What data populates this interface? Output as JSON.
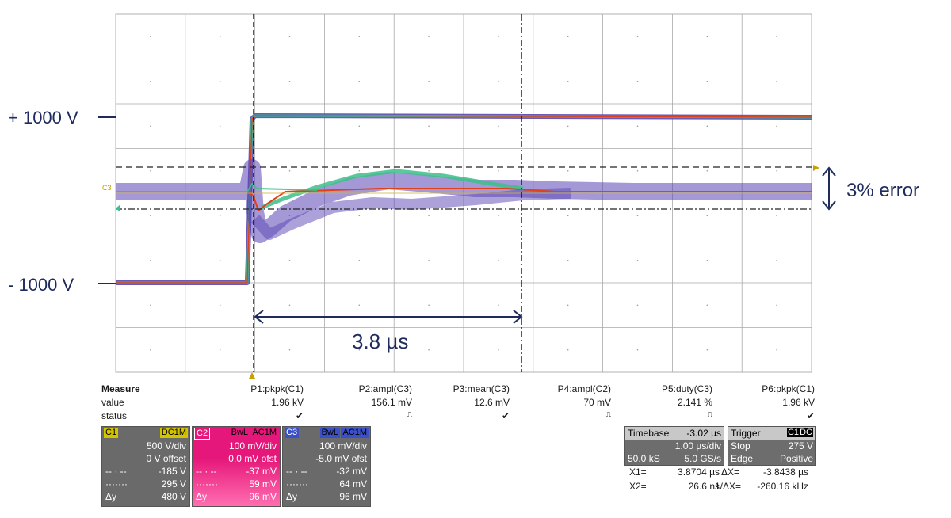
{
  "annotations": {
    "plus_level": "+ 1000 V",
    "minus_level": "- 1000 V",
    "error_label": "3% error",
    "time_label": "3.8 µs",
    "marker_c3": "C3"
  },
  "measure": {
    "header": "Measure",
    "row_labels": [
      "value",
      "status"
    ],
    "params": [
      {
        "name": "P1:pkpk(C1)",
        "value": "1.96 kV",
        "status": "✔"
      },
      {
        "name": "P2:ampl(C3)",
        "value": "156.1 mV",
        "status": "⎍"
      },
      {
        "name": "P3:mean(C3)",
        "value": "12.6 mV",
        "status": "✔"
      },
      {
        "name": "P4:ampl(C2)",
        "value": "70 mV",
        "status": "⎍"
      },
      {
        "name": "P5:duty(C3)",
        "value": "2.141 %",
        "status": "⎍"
      },
      {
        "name": "P6:pkpk(C1)",
        "value": "1.96 kV",
        "status": "✔"
      }
    ]
  },
  "channels": [
    {
      "id": "C1",
      "color": "#d4c400",
      "body": "#6a6a6a",
      "tags": [
        "DC1M"
      ],
      "vdiv": "500 V/div",
      "offset": "0 V offset",
      "lines": [
        [
          "-- · --",
          "-185 V"
        ],
        [
          "·······",
          "295 V"
        ],
        [
          "Δy",
          "480 V"
        ]
      ]
    },
    {
      "id": "C2",
      "color": "#e6177a",
      "body": "#e6177a",
      "tags": [
        "BwL",
        "AC1M"
      ],
      "vdiv": "100 mV/div",
      "offset": "0.0 mV ofst",
      "lines": [
        [
          "-- · --",
          "-37 mV"
        ],
        [
          "·······",
          "59 mV"
        ],
        [
          "Δy",
          "96 mV"
        ]
      ]
    },
    {
      "id": "C3",
      "color": "#3a4fc8",
      "body": "#6a6a6a",
      "tags": [
        "BwL",
        "AC1M"
      ],
      "vdiv": "100 mV/div",
      "offset": "-5.0 mV ofst",
      "lines": [
        [
          "-- · --",
          "-32 mV"
        ],
        [
          "·······",
          "64 mV"
        ],
        [
          "Δy",
          "96 mV"
        ]
      ]
    }
  ],
  "timebase": {
    "label": "Timebase",
    "delay": "-3.02 µs",
    "per_div": "1.00 µs/div",
    "samples": "50.0 kS",
    "rate": "5.0 GS/s"
  },
  "trigger": {
    "label": "Trigger",
    "tags": [
      "C1",
      "DC"
    ],
    "mode": "Stop",
    "level": "275 V",
    "type": "Edge",
    "slope": "Positive"
  },
  "cursors": {
    "x1_label": "X1=",
    "x1": "3.8704 µs",
    "dx_label": "ΔX=",
    "dx": "-3.8438 µs",
    "x2_label": "X2=",
    "x2": "26.6 ns",
    "inv_dx_label": "1/ΔX=",
    "inv_dx": "-260.16 kHz"
  },
  "colors": {
    "annotation": "#1e2b5c",
    "grid": "#a8a8a8",
    "trace_hot": "#e0401a",
    "trace_mid": "#3cc08a",
    "trace_cool": "#5a46b4"
  }
}
